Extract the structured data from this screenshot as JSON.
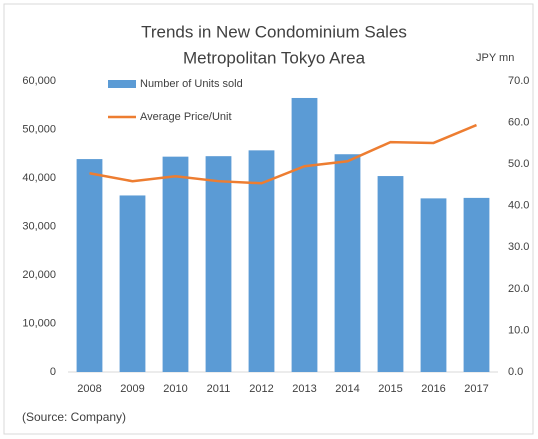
{
  "chart_data": {
    "type": "bar",
    "title": [
      "Trends in New Condominium Sales",
      "Metropolitan Tokyo Area"
    ],
    "y2_label": "JPY mn",
    "source": "(Source: Company)",
    "categories": [
      "2008",
      "2009",
      "2010",
      "2011",
      "2012",
      "2013",
      "2014",
      "2015",
      "2016",
      "2017"
    ],
    "series": [
      {
        "name": "Number of Units sold",
        "type": "bar",
        "color": "#5b9bd5",
        "values": [
          43900,
          36400,
          44400,
          44500,
          45700,
          56500,
          44900,
          40400,
          35800,
          35900
        ]
      },
      {
        "name": "Average Price/Unit",
        "type": "line",
        "axis": "y2",
        "color": "#ed7d31",
        "values": [
          47.8,
          45.9,
          47.1,
          45.9,
          45.4,
          49.5,
          50.7,
          55.3,
          55.1,
          59.4
        ]
      }
    ],
    "ylim": [
      0,
      60000
    ],
    "yticks": [
      {
        "value": 0,
        "label": "0"
      },
      {
        "value": 10000,
        "label": "10,000"
      },
      {
        "value": 20000,
        "label": "20,000"
      },
      {
        "value": 30000,
        "label": "30,000"
      },
      {
        "value": 40000,
        "label": "40,000"
      },
      {
        "value": 50000,
        "label": "50,000"
      },
      {
        "value": 60000,
        "label": "60,000"
      }
    ],
    "y2lim": [
      0,
      70
    ],
    "y2ticks": [
      {
        "value": 0,
        "label": "0.0"
      },
      {
        "value": 10,
        "label": "10.0"
      },
      {
        "value": 20,
        "label": "20.0"
      },
      {
        "value": 30,
        "label": "30.0"
      },
      {
        "value": 40,
        "label": "40.0"
      },
      {
        "value": 50,
        "label": "50.0"
      },
      {
        "value": 60,
        "label": "60.0"
      },
      {
        "value": 70,
        "label": "70.0"
      }
    ],
    "grid": false,
    "legend": "top-left"
  }
}
